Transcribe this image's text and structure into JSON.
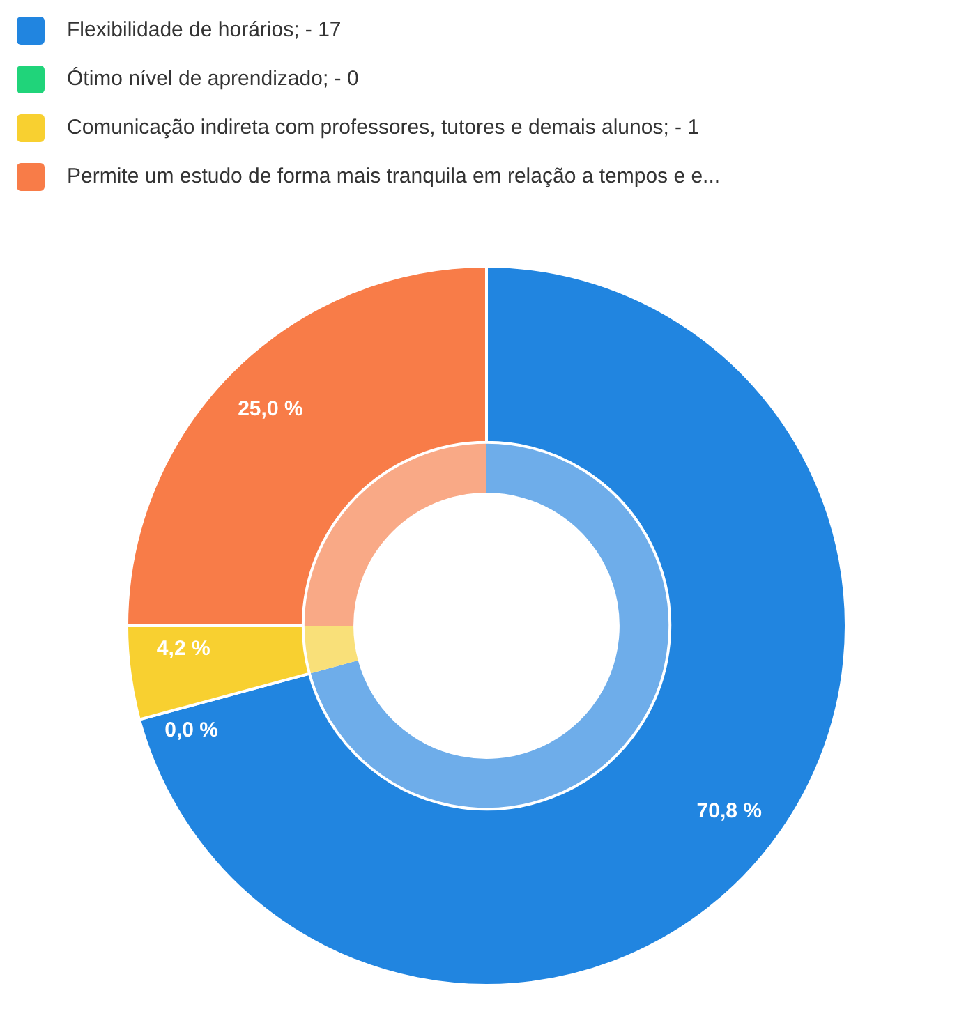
{
  "chart_data": {
    "type": "donut",
    "categories": [
      "Flexibilidade de horários; - 17",
      "Ótimo nível de aprendizado; - 0",
      "Comunicação indireta com professores, tutores e demais alunos; - 1",
      "Permite um estudo de forma mais tranquila em relação a tempos e e..."
    ],
    "series": [
      {
        "values": [
          70.8,
          0.0,
          4.2,
          25.0
        ],
        "colors": [
          "#2185e0",
          "#20d47a",
          "#f8d030",
          "#f87c48"
        ]
      },
      {
        "values": [
          70.8,
          0.0,
          4.2,
          25.0
        ],
        "colors": [
          "#6eadea",
          "#6de4a6",
          "#f9e079",
          "#f9a986"
        ]
      }
    ],
    "value_labels": [
      "70,8 %",
      "0,0 %",
      "4,2 %",
      "25,0 %"
    ],
    "legend": "top left"
  }
}
